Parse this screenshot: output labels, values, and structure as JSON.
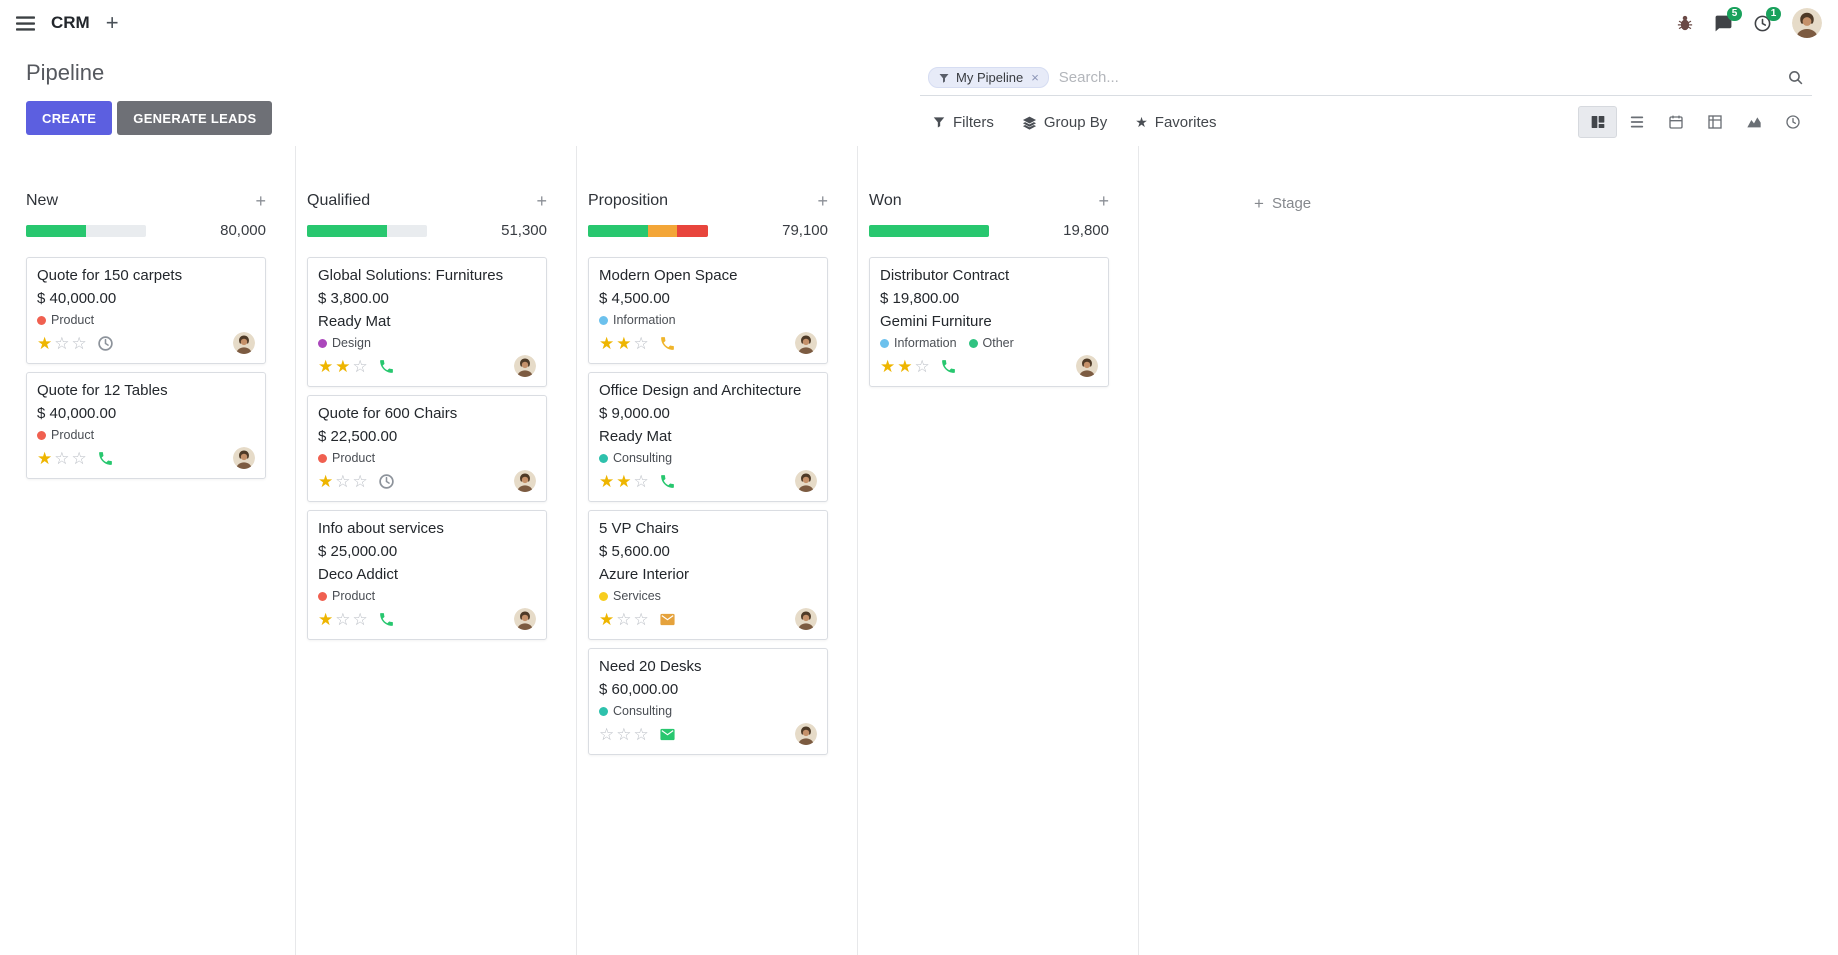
{
  "colors": {
    "primary": "#5c5fe0",
    "secondary_button": "#6e7076",
    "success": "#28c76f",
    "warning": "#f3a638",
    "danger": "#e8453c",
    "star_active": "#eeb500",
    "badge": "#19a15c"
  },
  "icons": {
    "plus": "+",
    "star_filled": "★",
    "star_empty": "☆"
  },
  "navbar": {
    "app_name": "CRM",
    "messages_badge": "5",
    "activities_badge": "1"
  },
  "control_panel": {
    "title": "Pipeline",
    "create_button": "CREATE",
    "generate_leads_button": "GENERATE LEADS",
    "search": {
      "facet": "My Pipeline",
      "remove": "×",
      "placeholder": "Search..."
    },
    "filters_button": "Filters",
    "group_by_button": "Group By",
    "favorites_button": "Favorites"
  },
  "kanban": {
    "add_stage_label": "Stage",
    "columns": [
      {
        "name": "New",
        "total": "80,000",
        "progress": [
          {
            "pct": 50,
            "color": "#28c76f"
          }
        ],
        "cards": [
          {
            "title": "Quote for 150 carpets",
            "amount": "$ 40,000.00",
            "tags": [
              {
                "label": "Product",
                "color": "#f06050"
              }
            ],
            "stars": [
              1,
              0,
              0
            ],
            "activity": {
              "type": "clock",
              "color": "#8d939b"
            }
          },
          {
            "title": "Quote for 12 Tables",
            "amount": "$ 40,000.00",
            "tags": [
              {
                "label": "Product",
                "color": "#f06050"
              }
            ],
            "stars": [
              1,
              0,
              0
            ],
            "activity": {
              "type": "phone",
              "color": "#28c76f"
            }
          }
        ]
      },
      {
        "name": "Qualified",
        "total": "51,300",
        "progress": [
          {
            "pct": 67,
            "color": "#28c76f"
          }
        ],
        "cards": [
          {
            "title": "Global Solutions: Furnitures",
            "amount": "$ 3,800.00",
            "partner": "Ready Mat",
            "tags": [
              {
                "label": "Design",
                "color": "#ab47bc"
              }
            ],
            "stars": [
              1,
              1,
              0
            ],
            "activity": {
              "type": "phone",
              "color": "#28c76f"
            }
          },
          {
            "title": "Quote for 600 Chairs",
            "amount": "$ 22,500.00",
            "tags": [
              {
                "label": "Product",
                "color": "#f06050"
              }
            ],
            "stars": [
              1,
              0,
              0
            ],
            "activity": {
              "type": "clock",
              "color": "#8d939b"
            }
          },
          {
            "title": "Info about services",
            "amount": "$ 25,000.00",
            "partner": "Deco Addict",
            "tags": [
              {
                "label": "Product",
                "color": "#f06050"
              }
            ],
            "stars": [
              1,
              0,
              0
            ],
            "activity": {
              "type": "phone",
              "color": "#28c76f"
            }
          }
        ]
      },
      {
        "name": "Proposition",
        "total": "79,100",
        "progress": [
          {
            "pct": 50,
            "color": "#28c76f"
          },
          {
            "pct": 24,
            "color": "#f3a638"
          },
          {
            "pct": 26,
            "color": "#e8453c"
          }
        ],
        "cards": [
          {
            "title": "Modern Open Space",
            "amount": "$ 4,500.00",
            "tags": [
              {
                "label": "Information",
                "color": "#6cc1ed"
              }
            ],
            "stars": [
              1,
              1,
              0
            ],
            "activity": {
              "type": "phone",
              "color": "#f0b52c"
            }
          },
          {
            "title": "Office Design and Architecture",
            "amount": "$ 9,000.00",
            "partner": "Ready Mat",
            "tags": [
              {
                "label": "Consulting",
                "color": "#2ec1ac"
              }
            ],
            "stars": [
              1,
              1,
              0
            ],
            "activity": {
              "type": "phone",
              "color": "#28c76f"
            }
          },
          {
            "title": "5 VP Chairs",
            "amount": "$ 5,600.00",
            "partner": "Azure Interior",
            "tags": [
              {
                "label": "Services",
                "color": "#f7cd1f"
              }
            ],
            "stars": [
              1,
              0,
              0
            ],
            "activity": {
              "type": "envelope",
              "color": "#e5a23c"
            }
          },
          {
            "title": "Need 20 Desks",
            "amount": "$ 60,000.00",
            "tags": [
              {
                "label": "Consulting",
                "color": "#2ec1ac"
              }
            ],
            "stars": [
              0,
              0,
              0
            ],
            "activity": {
              "type": "envelope",
              "color": "#28c76f"
            }
          }
        ]
      },
      {
        "name": "Won",
        "total": "19,800",
        "progress": [
          {
            "pct": 100,
            "color": "#28c76f"
          }
        ],
        "cards": [
          {
            "title": "Distributor Contract",
            "amount": "$ 19,800.00",
            "partner": "Gemini Furniture",
            "tags": [
              {
                "label": "Information",
                "color": "#6cc1ed"
              },
              {
                "label": "Other",
                "color": "#30c381"
              }
            ],
            "stars": [
              1,
              1,
              0
            ],
            "activity": {
              "type": "phone",
              "color": "#28c76f"
            }
          }
        ]
      }
    ]
  }
}
